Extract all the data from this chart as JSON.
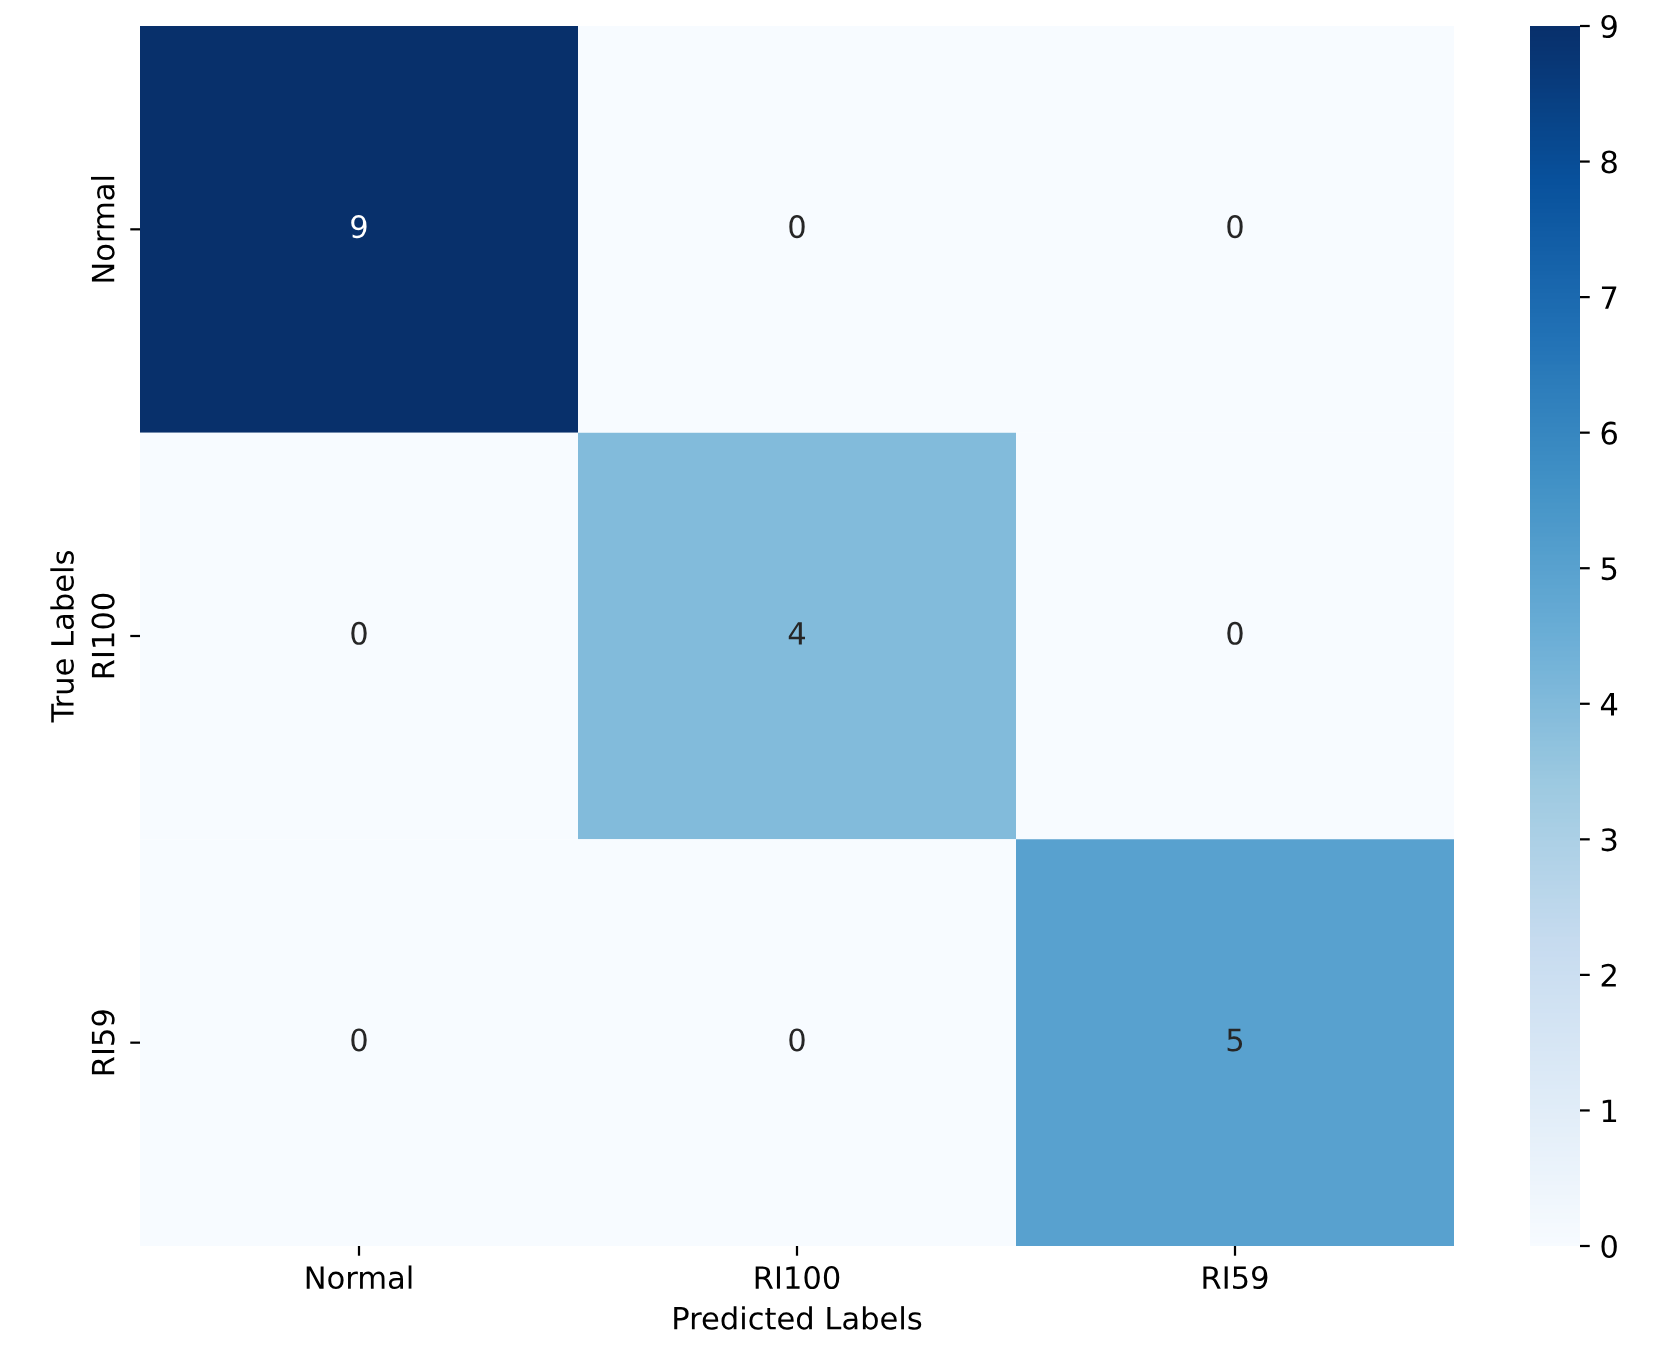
{
  "chart_data": {
    "type": "heatmap",
    "xlabel": "Predicted Labels",
    "ylabel": "True Labels",
    "categories": [
      "Normal",
      "RI100",
      "RI59"
    ],
    "y_categories": [
      "Normal",
      "RI100",
      "RI59"
    ],
    "cells": [
      [
        9,
        0,
        0
      ],
      [
        0,
        4,
        0
      ],
      [
        0,
        0,
        5
      ]
    ],
    "clim": [
      0,
      9
    ],
    "cticks": [
      0,
      1,
      2,
      3,
      4,
      5,
      6,
      7,
      8,
      9
    ],
    "data_labels": true
  }
}
